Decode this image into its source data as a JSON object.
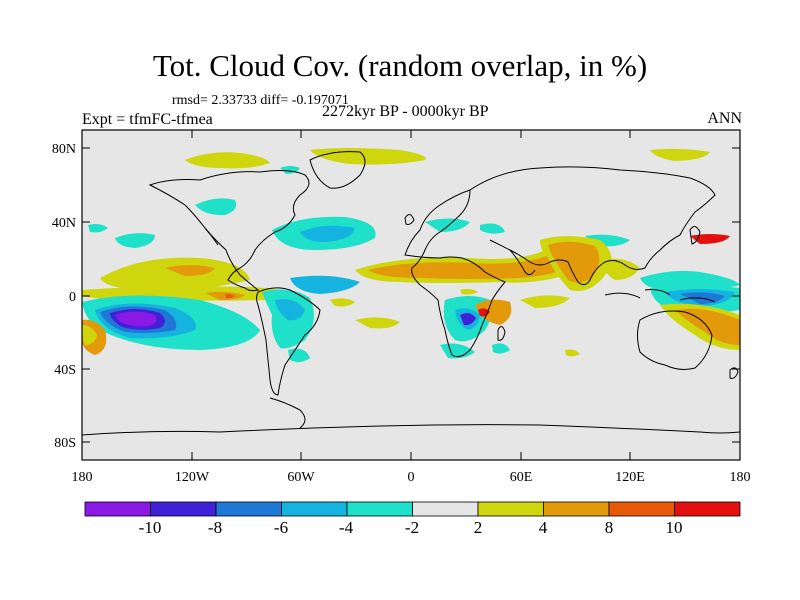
{
  "title": "Tot. Cloud Cov. (random overlap, in %)",
  "stats": "rmsd= 2.33733 diff= -0.197071",
  "period": "2272kyr BP - 0000kyr BP",
  "experiment": "Expt = tfmFC-tfmea",
  "season": "ANN",
  "y_ticks": [
    "80N",
    "40N",
    "0",
    "40S",
    "80S"
  ],
  "x_ticks": [
    "180",
    "120W",
    "60W",
    "0",
    "60E",
    "120E",
    "180"
  ],
  "colorbar": {
    "labels": [
      "-10",
      "-8",
      "-6",
      "-4",
      "-2",
      "2",
      "4",
      "8",
      "10"
    ],
    "colors": [
      "#8a19e6",
      "#3f22d8",
      "#1f78d6",
      "#15b4e0",
      "#1fe0c8",
      "#e6e6e6",
      "#cfd60e",
      "#e39a0a",
      "#e85a08",
      "#e41010"
    ]
  },
  "background_color": "#e6e6e6"
}
